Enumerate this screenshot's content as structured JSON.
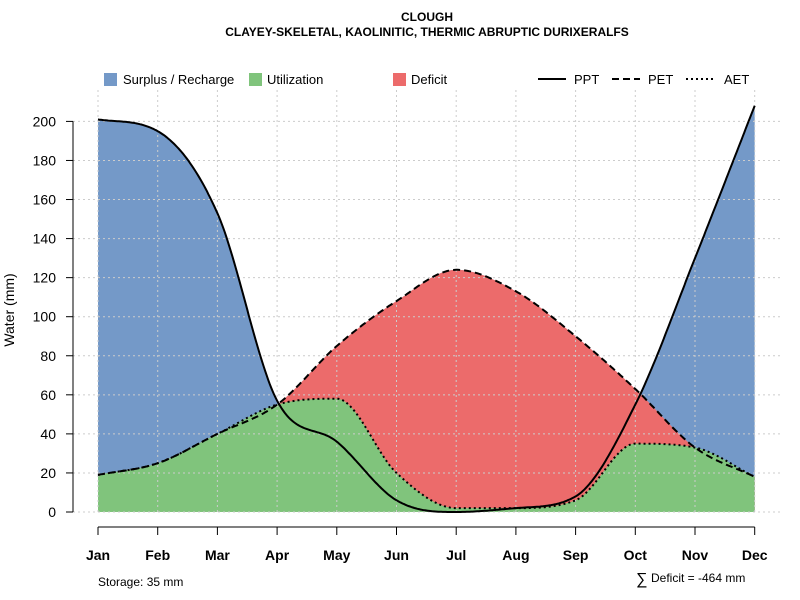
{
  "chart_data": {
    "type": "area",
    "title": "CLOUGH",
    "subtitle": "CLAYEY-SKELETAL, KAOLINITIC, THERMIC ABRUPTIC DURIXERALFS",
    "xlabel": "",
    "ylabel": "Water (mm)",
    "ylim": [
      0,
      210
    ],
    "yticks": [
      0,
      20,
      40,
      60,
      80,
      100,
      120,
      140,
      160,
      180,
      200
    ],
    "grid": true,
    "legend_position": "top",
    "categories": [
      "Jan",
      "Feb",
      "Mar",
      "Apr",
      "May",
      "Jun",
      "Jul",
      "Aug",
      "Sep",
      "Oct",
      "Nov",
      "Dec"
    ],
    "series": [
      {
        "name": "PPT",
        "style": "solid",
        "values": [
          201,
          195,
          153,
          57,
          36,
          6,
          0,
          2,
          8,
          55,
          130,
          208
        ]
      },
      {
        "name": "PET",
        "style": "dashed",
        "values": [
          19,
          25,
          40,
          55,
          85,
          108,
          124,
          113,
          90,
          63,
          33,
          18
        ]
      },
      {
        "name": "AET",
        "style": "dotted",
        "values": [
          19,
          25,
          40,
          55,
          58,
          20,
          2,
          2,
          6,
          35,
          33,
          18
        ]
      }
    ],
    "areas": [
      {
        "name": "Surplus / Recharge",
        "color": "#7499c8"
      },
      {
        "name": "Utilization",
        "color": "#80c47c"
      },
      {
        "name": "Deficit",
        "color": "#ec6b6b"
      }
    ],
    "annotations": {
      "storage": "Storage: 35 mm",
      "deficit_symbol": "∑",
      "deficit": "Deficit = -464 mm"
    }
  }
}
